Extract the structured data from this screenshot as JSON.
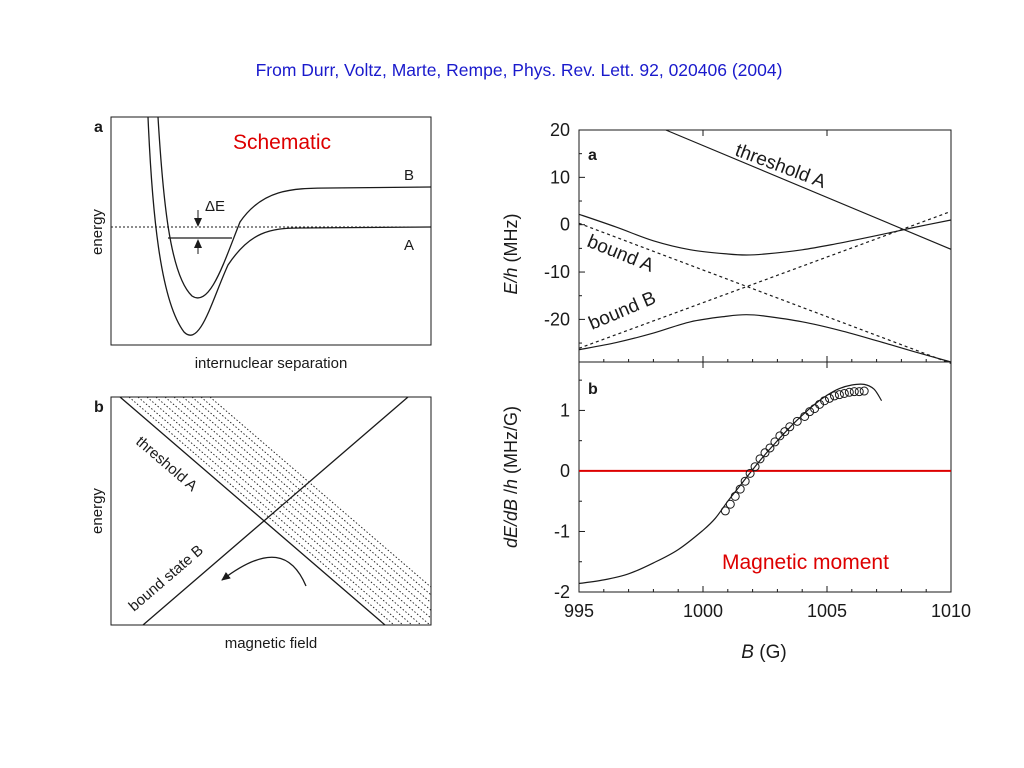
{
  "citation": "From Durr, Voltz, Marte, Rempe, Phys. Rev. Lett. 92, 020406 (2004)",
  "colors": {
    "citation": "#1a1acc",
    "annotation": "#dd0000",
    "line": "#1a1a1a"
  },
  "left_panels": {
    "a": {
      "letter": "a",
      "note": "Schematic",
      "ylabel": "energy",
      "xlabel": "internuclear separation",
      "label_B": "B",
      "label_A": "A",
      "delta_label": "ΔE"
    },
    "b": {
      "letter": "b",
      "ylabel": "energy",
      "xlabel": "magnetic field",
      "threshold_label": "threshold A",
      "bound_label": "bound state B"
    }
  },
  "chart_data": [
    {
      "type": "line",
      "panel": "a",
      "ylabel": "E/h (MHz)",
      "xlim": [
        995,
        1010
      ],
      "ylim": [
        -29,
        20
      ],
      "yticks": [
        20,
        10,
        0,
        -10,
        -20
      ],
      "grid": false,
      "curve_labels": [
        "threshold A",
        "bound A",
        "bound B"
      ],
      "series": [
        {
          "name": "threshold A",
          "style": "solid",
          "x": [
            998.5,
            1010
          ],
          "y": [
            20.0,
            -5.2
          ]
        },
        {
          "name": "upper branch",
          "style": "solid",
          "x": [
            995,
            996.5,
            998,
            999.5,
            1001,
            1001.75,
            1002.5,
            1004,
            1005.5,
            1007,
            1008.5,
            1010
          ],
          "y": [
            2.2,
            -0.5,
            -3.4,
            -5.3,
            -6.2,
            -6.4,
            -6.2,
            -5.3,
            -3.9,
            -2.3,
            -0.6,
            1.0
          ]
        },
        {
          "name": "lower branch",
          "style": "solid",
          "x": [
            995,
            996.5,
            998,
            999.5,
            1001,
            1001.75,
            1002.5,
            1004,
            1005.5,
            1007,
            1008.5,
            1010
          ],
          "y": [
            -26.4,
            -24.9,
            -22.9,
            -20.5,
            -19.3,
            -19.0,
            -19.3,
            -20.5,
            -22.3,
            -24.5,
            -26.8,
            -29.0
          ]
        },
        {
          "name": "bound A",
          "style": "dashed",
          "x": [
            995,
            1010
          ],
          "y": [
            0.3,
            -29.3
          ]
        },
        {
          "name": "bound B",
          "style": "dashed",
          "x": [
            995,
            1010
          ],
          "y": [
            -26.1,
            2.8
          ]
        }
      ]
    },
    {
      "type": "line",
      "panel": "b",
      "xlabel": "B (G)",
      "ylabel": "dE/dB /h (MHz/G)",
      "xlim": [
        995,
        1010
      ],
      "ylim": [
        -2,
        1.8
      ],
      "xticks": [
        995,
        1000,
        1005,
        1010
      ],
      "yticks": [
        1,
        0,
        -1,
        -2
      ],
      "grid": false,
      "annotation": "Magnetic moment",
      "series": [
        {
          "name": "theory",
          "style": "solid",
          "x": [
            995,
            996,
            997,
            998,
            999,
            1000,
            1000.5,
            1001,
            1001.5,
            1002,
            1002.5,
            1003,
            1003.5,
            1004,
            1004.5,
            1005,
            1005.5,
            1006,
            1006.5,
            1006.9,
            1007.2
          ],
          "y": [
            -1.86,
            -1.8,
            -1.7,
            -1.52,
            -1.3,
            -0.98,
            -0.78,
            -0.5,
            -0.24,
            0.02,
            0.27,
            0.5,
            0.72,
            0.92,
            1.1,
            1.25,
            1.36,
            1.42,
            1.43,
            1.35,
            1.16
          ]
        },
        {
          "name": "zero",
          "style": "solid",
          "color": "#dd0000",
          "x": [
            995,
            1010
          ],
          "y": [
            0,
            0
          ]
        },
        {
          "name": "data",
          "style": "markers",
          "x": [
            1000.9,
            1001.1,
            1001.3,
            1001.5,
            1001.7,
            1001.9,
            1002.1,
            1002.3,
            1002.5,
            1002.7,
            1002.9,
            1003.1,
            1003.3,
            1003.5,
            1003.8,
            1004.1,
            1004.3,
            1004.5,
            1004.7,
            1004.9,
            1005.1,
            1005.3,
            1005.5,
            1005.7,
            1005.9,
            1006.1,
            1006.3,
            1006.5
          ],
          "y": [
            -0.66,
            -0.55,
            -0.42,
            -0.3,
            -0.17,
            -0.04,
            0.07,
            0.2,
            0.3,
            0.38,
            0.48,
            0.58,
            0.65,
            0.73,
            0.82,
            0.9,
            0.98,
            1.03,
            1.1,
            1.16,
            1.2,
            1.24,
            1.26,
            1.28,
            1.3,
            1.31,
            1.31,
            1.32
          ]
        }
      ]
    }
  ]
}
